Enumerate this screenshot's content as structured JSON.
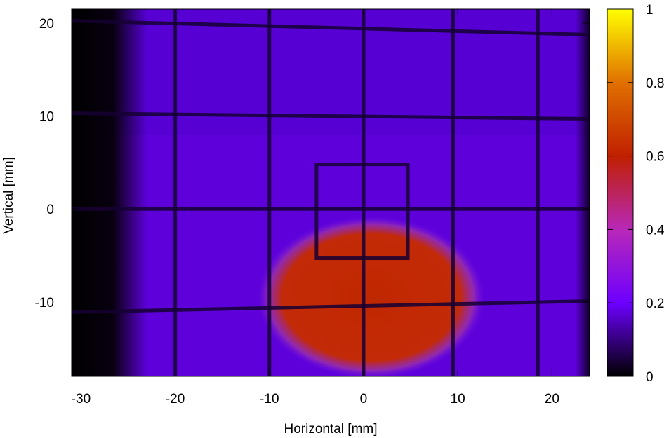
{
  "chart_data": {
    "type": "heatmap",
    "xlabel": "Horizontal [mm]",
    "ylabel": "Vertical [mm]",
    "xlim": [
      -31,
      24
    ],
    "ylim": [
      -18,
      21.5
    ],
    "x_ticks": [
      -30,
      -20,
      -10,
      0,
      10,
      20
    ],
    "y_ticks": [
      -10,
      0,
      10,
      20
    ],
    "colorbar": {
      "range": [
        0,
        1
      ],
      "ticks": [
        0,
        0.2,
        0.4,
        0.6,
        0.8,
        1
      ],
      "tick_labels": [
        "0",
        "0.2",
        "0.4",
        "0.6",
        "0.8",
        "1"
      ],
      "colormap": [
        "#000000",
        "#6d00ff",
        "#b828b8",
        "#c02000",
        "#e07000",
        "#ffff00"
      ]
    },
    "background_level": 0.17,
    "dark_edge_band": {
      "x_range": [
        -31,
        -25
      ],
      "level": 0.02
    },
    "bright_region": {
      "center": [
        0.8,
        -9.5
      ],
      "half_width": 10.8,
      "half_height": 7.8,
      "level": 0.5
    },
    "grid_wires_vertical_x": [
      -20,
      -10,
      0,
      9.5,
      18.5
    ],
    "grid_wires_horizontal_y": [
      19.5,
      10,
      0,
      -10.5
    ],
    "inner_square": {
      "x_range": [
        -5,
        4.7
      ],
      "y_range": [
        -5.3,
        4.8
      ]
    },
    "wire_level": 0.04
  }
}
